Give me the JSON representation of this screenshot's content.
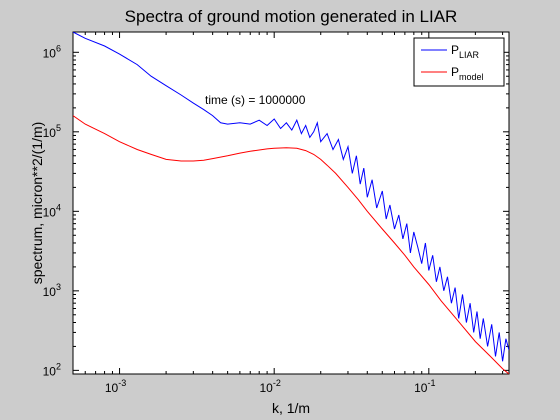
{
  "chart_data": {
    "type": "line",
    "title": "Spectra of ground motion generated in LIAR",
    "xlabel": "k, 1/m",
    "ylabel": "spectrum, micron**2/(1/m)",
    "xscale": "log",
    "yscale": "log",
    "xlim": [
      0.0005,
      0.33
    ],
    "ylim": [
      90,
      1800000
    ],
    "x_ticks": [
      {
        "base": "10",
        "exp": "-3",
        "value": 0.001
      },
      {
        "base": "10",
        "exp": "-2",
        "value": 0.01
      },
      {
        "base": "10",
        "exp": "-1",
        "value": 0.1
      }
    ],
    "y_ticks": [
      {
        "base": "10",
        "exp": "2",
        "value": 100
      },
      {
        "base": "10",
        "exp": "3",
        "value": 1000
      },
      {
        "base": "10",
        "exp": "4",
        "value": 10000
      },
      {
        "base": "10",
        "exp": "5",
        "value": 100000
      },
      {
        "base": "10",
        "exp": "6",
        "value": 1000000
      }
    ],
    "annotation": "time (s) = 1000000",
    "grid": false,
    "legend_position": "top-right",
    "series": [
      {
        "name": "P",
        "name_sub": "LIAR",
        "color": "#0000ff",
        "x": [
          0.0005,
          0.0006,
          0.0008,
          0.001,
          0.0013,
          0.0016,
          0.002,
          0.0025,
          0.003,
          0.0035,
          0.004,
          0.0045,
          0.005,
          0.006,
          0.007,
          0.008,
          0.009,
          0.01,
          0.011,
          0.012,
          0.013,
          0.014,
          0.015,
          0.016,
          0.017,
          0.018,
          0.019,
          0.02,
          0.022,
          0.024,
          0.026,
          0.028,
          0.03,
          0.032,
          0.034,
          0.036,
          0.038,
          0.04,
          0.043,
          0.046,
          0.05,
          0.053,
          0.056,
          0.06,
          0.064,
          0.068,
          0.072,
          0.076,
          0.08,
          0.085,
          0.09,
          0.095,
          0.1,
          0.106,
          0.112,
          0.118,
          0.125,
          0.132,
          0.14,
          0.148,
          0.156,
          0.165,
          0.175,
          0.185,
          0.195,
          0.205,
          0.215,
          0.225,
          0.24,
          0.255,
          0.27,
          0.285,
          0.3,
          0.315,
          0.33
        ],
        "y": [
          1800000,
          1500000,
          1200000,
          950000,
          700000,
          500000,
          380000,
          290000,
          230000,
          190000,
          160000,
          130000,
          125000,
          130000,
          125000,
          140000,
          120000,
          145000,
          110000,
          130000,
          105000,
          140000,
          95000,
          120000,
          85000,
          100000,
          130000,
          75000,
          95000,
          60000,
          80000,
          45000,
          65000,
          30000,
          50000,
          22000,
          35000,
          15000,
          25000,
          11000,
          18000,
          8000,
          12000,
          6000,
          9000,
          4500,
          7000,
          3000,
          5500,
          3500,
          2200,
          4000,
          1800,
          2800,
          1300,
          2000,
          1000,
          1500,
          700,
          1100,
          450,
          900,
          400,
          700,
          300,
          550,
          250,
          450,
          200,
          380,
          150,
          300,
          130,
          250,
          180
        ]
      },
      {
        "name": "P",
        "name_sub": "model",
        "color": "#ff0000",
        "x": [
          0.0005,
          0.0006,
          0.0008,
          0.001,
          0.0013,
          0.0016,
          0.002,
          0.0025,
          0.003,
          0.0035,
          0.004,
          0.005,
          0.006,
          0.007,
          0.008,
          0.009,
          0.01,
          0.012,
          0.014,
          0.016,
          0.018,
          0.02,
          0.022,
          0.025,
          0.03,
          0.035,
          0.04,
          0.05,
          0.06,
          0.07,
          0.08,
          0.1,
          0.12,
          0.15,
          0.2,
          0.25,
          0.3,
          0.33
        ],
        "y": [
          160000,
          125000,
          95000,
          75000,
          60000,
          52000,
          45000,
          43000,
          43000,
          44000,
          46000,
          50000,
          54000,
          57000,
          59000,
          61000,
          62000,
          63000,
          62000,
          58000,
          52000,
          45000,
          38000,
          30000,
          20000,
          14000,
          10000,
          6000,
          4000,
          2800,
          2000,
          1200,
          750,
          450,
          230,
          150,
          105,
          90
        ]
      }
    ]
  }
}
